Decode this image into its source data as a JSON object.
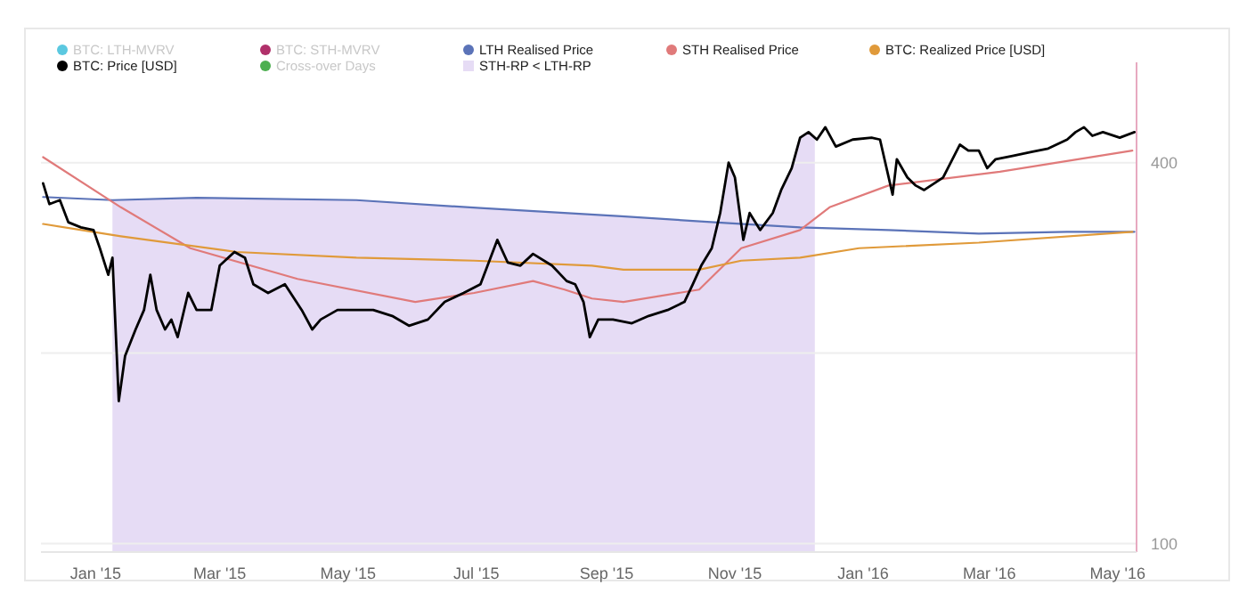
{
  "chart_data": {
    "type": "line",
    "log": true,
    "grid": "y",
    "legend": "top",
    "marker": "none",
    "line_style": "solid",
    "xlim": [
      "2014-12-06",
      "2016-05-10"
    ],
    "xticks": [
      {
        "value": "2015-01-01",
        "label": "Jan '15"
      },
      {
        "value": "2015-03-01",
        "label": "Mar '15"
      },
      {
        "value": "2015-05-01",
        "label": "May '15"
      },
      {
        "value": "2015-07-01",
        "label": "Jul '15"
      },
      {
        "value": "2015-09-01",
        "label": "Sep '15"
      },
      {
        "value": "2015-11-01",
        "label": "Nov '15"
      },
      {
        "value": "2016-01-01",
        "label": "Jan '16"
      },
      {
        "value": "2016-03-01",
        "label": "Mar '16"
      },
      {
        "value": "2016-05-01",
        "label": "May '16"
      }
    ],
    "ylim": [
      97,
      540
    ],
    "yticks": [
      100,
      {
        "value": 200,
        "label": null
      },
      400
    ],
    "bands": [
      {
        "axis": "x",
        "from": "2015-01-09",
        "to": "2015-12-09",
        "label": "STH-RP < LTH-RP",
        "color": "#e6dcf5"
      }
    ],
    "series": [
      {
        "name": "BTC: LTH-MVRV",
        "color": "#5bc8e0"
      },
      {
        "name": "BTC: STH-MVRV",
        "color": "#b0306a"
      },
      {
        "name": "LTH Realised Price",
        "color": "#5b73b8",
        "x": [
          "2014-12-07",
          "2015-01-09",
          "2015-02-18",
          "2015-05-05",
          "2015-07-03",
          "2015-09-08",
          "2015-10-29",
          "2015-12-02",
          "2016-01-13",
          "2016-02-25",
          "2016-04-07",
          "2016-05-09"
        ],
        "values": [
          353,
          349,
          352,
          349,
          339,
          329,
          321,
          316,
          313,
          309,
          311,
          311
        ]
      },
      {
        "name": "STH Realised Price",
        "color": "#e07a7a",
        "x": [
          "2014-12-07",
          "2015-01-13",
          "2015-02-15",
          "2015-04-07",
          "2015-06-02",
          "2015-06-30",
          "2015-07-28",
          "2015-08-12",
          "2015-08-25",
          "2015-09-09",
          "2015-10-15",
          "2015-11-04",
          "2015-12-02",
          "2015-12-16",
          "2016-01-13",
          "2016-03-06",
          "2016-05-08"
        ],
        "values": [
          408,
          340,
          293,
          262,
          241,
          249,
          260,
          252,
          244,
          241,
          252,
          293,
          313,
          340,
          368,
          387,
          418
        ]
      },
      {
        "name": "BTC: Realized Price [USD]",
        "color": "#e09a3a",
        "x": [
          "2014-12-07",
          "2015-01-13",
          "2015-03-09",
          "2015-05-05",
          "2015-06-30",
          "2015-08-25",
          "2015-09-09",
          "2015-10-15",
          "2015-11-04",
          "2015-12-02",
          "2015-12-30",
          "2016-02-25",
          "2016-05-08"
        ],
        "values": [
          320,
          306,
          289,
          283,
          280,
          275,
          271,
          271,
          280,
          283,
          293,
          299,
          311
        ]
      },
      {
        "name": "BTC: Price [USD]",
        "color": "#000000",
        "x": [
          "2014-12-07",
          "2014-12-10",
          "2014-12-15",
          "2014-12-19",
          "2014-12-25",
          "2014-12-31",
          "2015-01-03",
          "2015-01-07",
          "2015-01-09",
          "2015-01-12",
          "2015-01-15",
          "2015-01-20",
          "2015-01-24",
          "2015-01-27",
          "2015-01-30",
          "2015-02-03",
          "2015-02-06",
          "2015-02-09",
          "2015-02-14",
          "2015-02-18",
          "2015-02-25",
          "2015-03-01",
          "2015-03-08",
          "2015-03-13",
          "2015-03-17",
          "2015-03-24",
          "2015-04-01",
          "2015-04-09",
          "2015-04-14",
          "2015-04-18",
          "2015-04-26",
          "2015-05-05",
          "2015-05-13",
          "2015-05-22",
          "2015-05-30",
          "2015-06-08",
          "2015-06-16",
          "2015-06-25",
          "2015-07-03",
          "2015-07-11",
          "2015-07-16",
          "2015-07-22",
          "2015-07-28",
          "2015-08-06",
          "2015-08-13",
          "2015-08-17",
          "2015-08-21",
          "2015-08-24",
          "2015-08-28",
          "2015-09-04",
          "2015-09-13",
          "2015-09-21",
          "2015-09-30",
          "2015-10-08",
          "2015-10-12",
          "2015-10-16",
          "2015-10-21",
          "2015-10-25",
          "2015-10-29",
          "2015-11-01",
          "2015-11-05",
          "2015-11-08",
          "2015-11-13",
          "2015-11-19",
          "2015-11-23",
          "2015-11-28",
          "2015-12-02",
          "2015-12-06",
          "2015-12-10",
          "2015-12-14",
          "2015-12-19",
          "2015-12-27",
          "2016-01-05",
          "2016-01-09",
          "2016-01-15",
          "2016-01-17",
          "2016-01-22",
          "2016-01-26",
          "2016-01-30",
          "2016-02-08",
          "2016-02-16",
          "2016-02-20",
          "2016-02-25",
          "2016-02-29",
          "2016-03-04",
          "2016-03-12",
          "2016-03-21",
          "2016-03-29",
          "2016-04-07",
          "2016-04-11",
          "2016-04-15",
          "2016-04-19",
          "2016-04-24",
          "2016-05-02",
          "2016-05-09"
        ],
        "values": [
          371,
          344,
          349,
          322,
          316,
          313,
          293,
          266,
          283,
          168,
          198,
          218,
          234,
          266,
          234,
          218,
          226,
          212,
          249,
          234,
          234,
          275,
          289,
          283,
          257,
          249,
          257,
          234,
          218,
          226,
          234,
          234,
          234,
          229,
          221,
          226,
          241,
          249,
          257,
          302,
          278,
          275,
          287,
          275,
          260,
          257,
          241,
          212,
          226,
          226,
          223,
          229,
          234,
          241,
          257,
          275,
          293,
          333,
          400,
          379,
          302,
          333,
          313,
          333,
          362,
          392,
          438,
          447,
          435,
          455,
          424,
          435,
          438,
          435,
          356,
          405,
          379,
          368,
          362,
          379,
          427,
          418,
          418,
          392,
          405,
          410,
          416,
          421,
          435,
          447,
          455,
          441,
          447,
          438,
          447
        ]
      },
      {
        "name": "Cross-over Days",
        "color": "#4caf50"
      }
    ]
  }
}
